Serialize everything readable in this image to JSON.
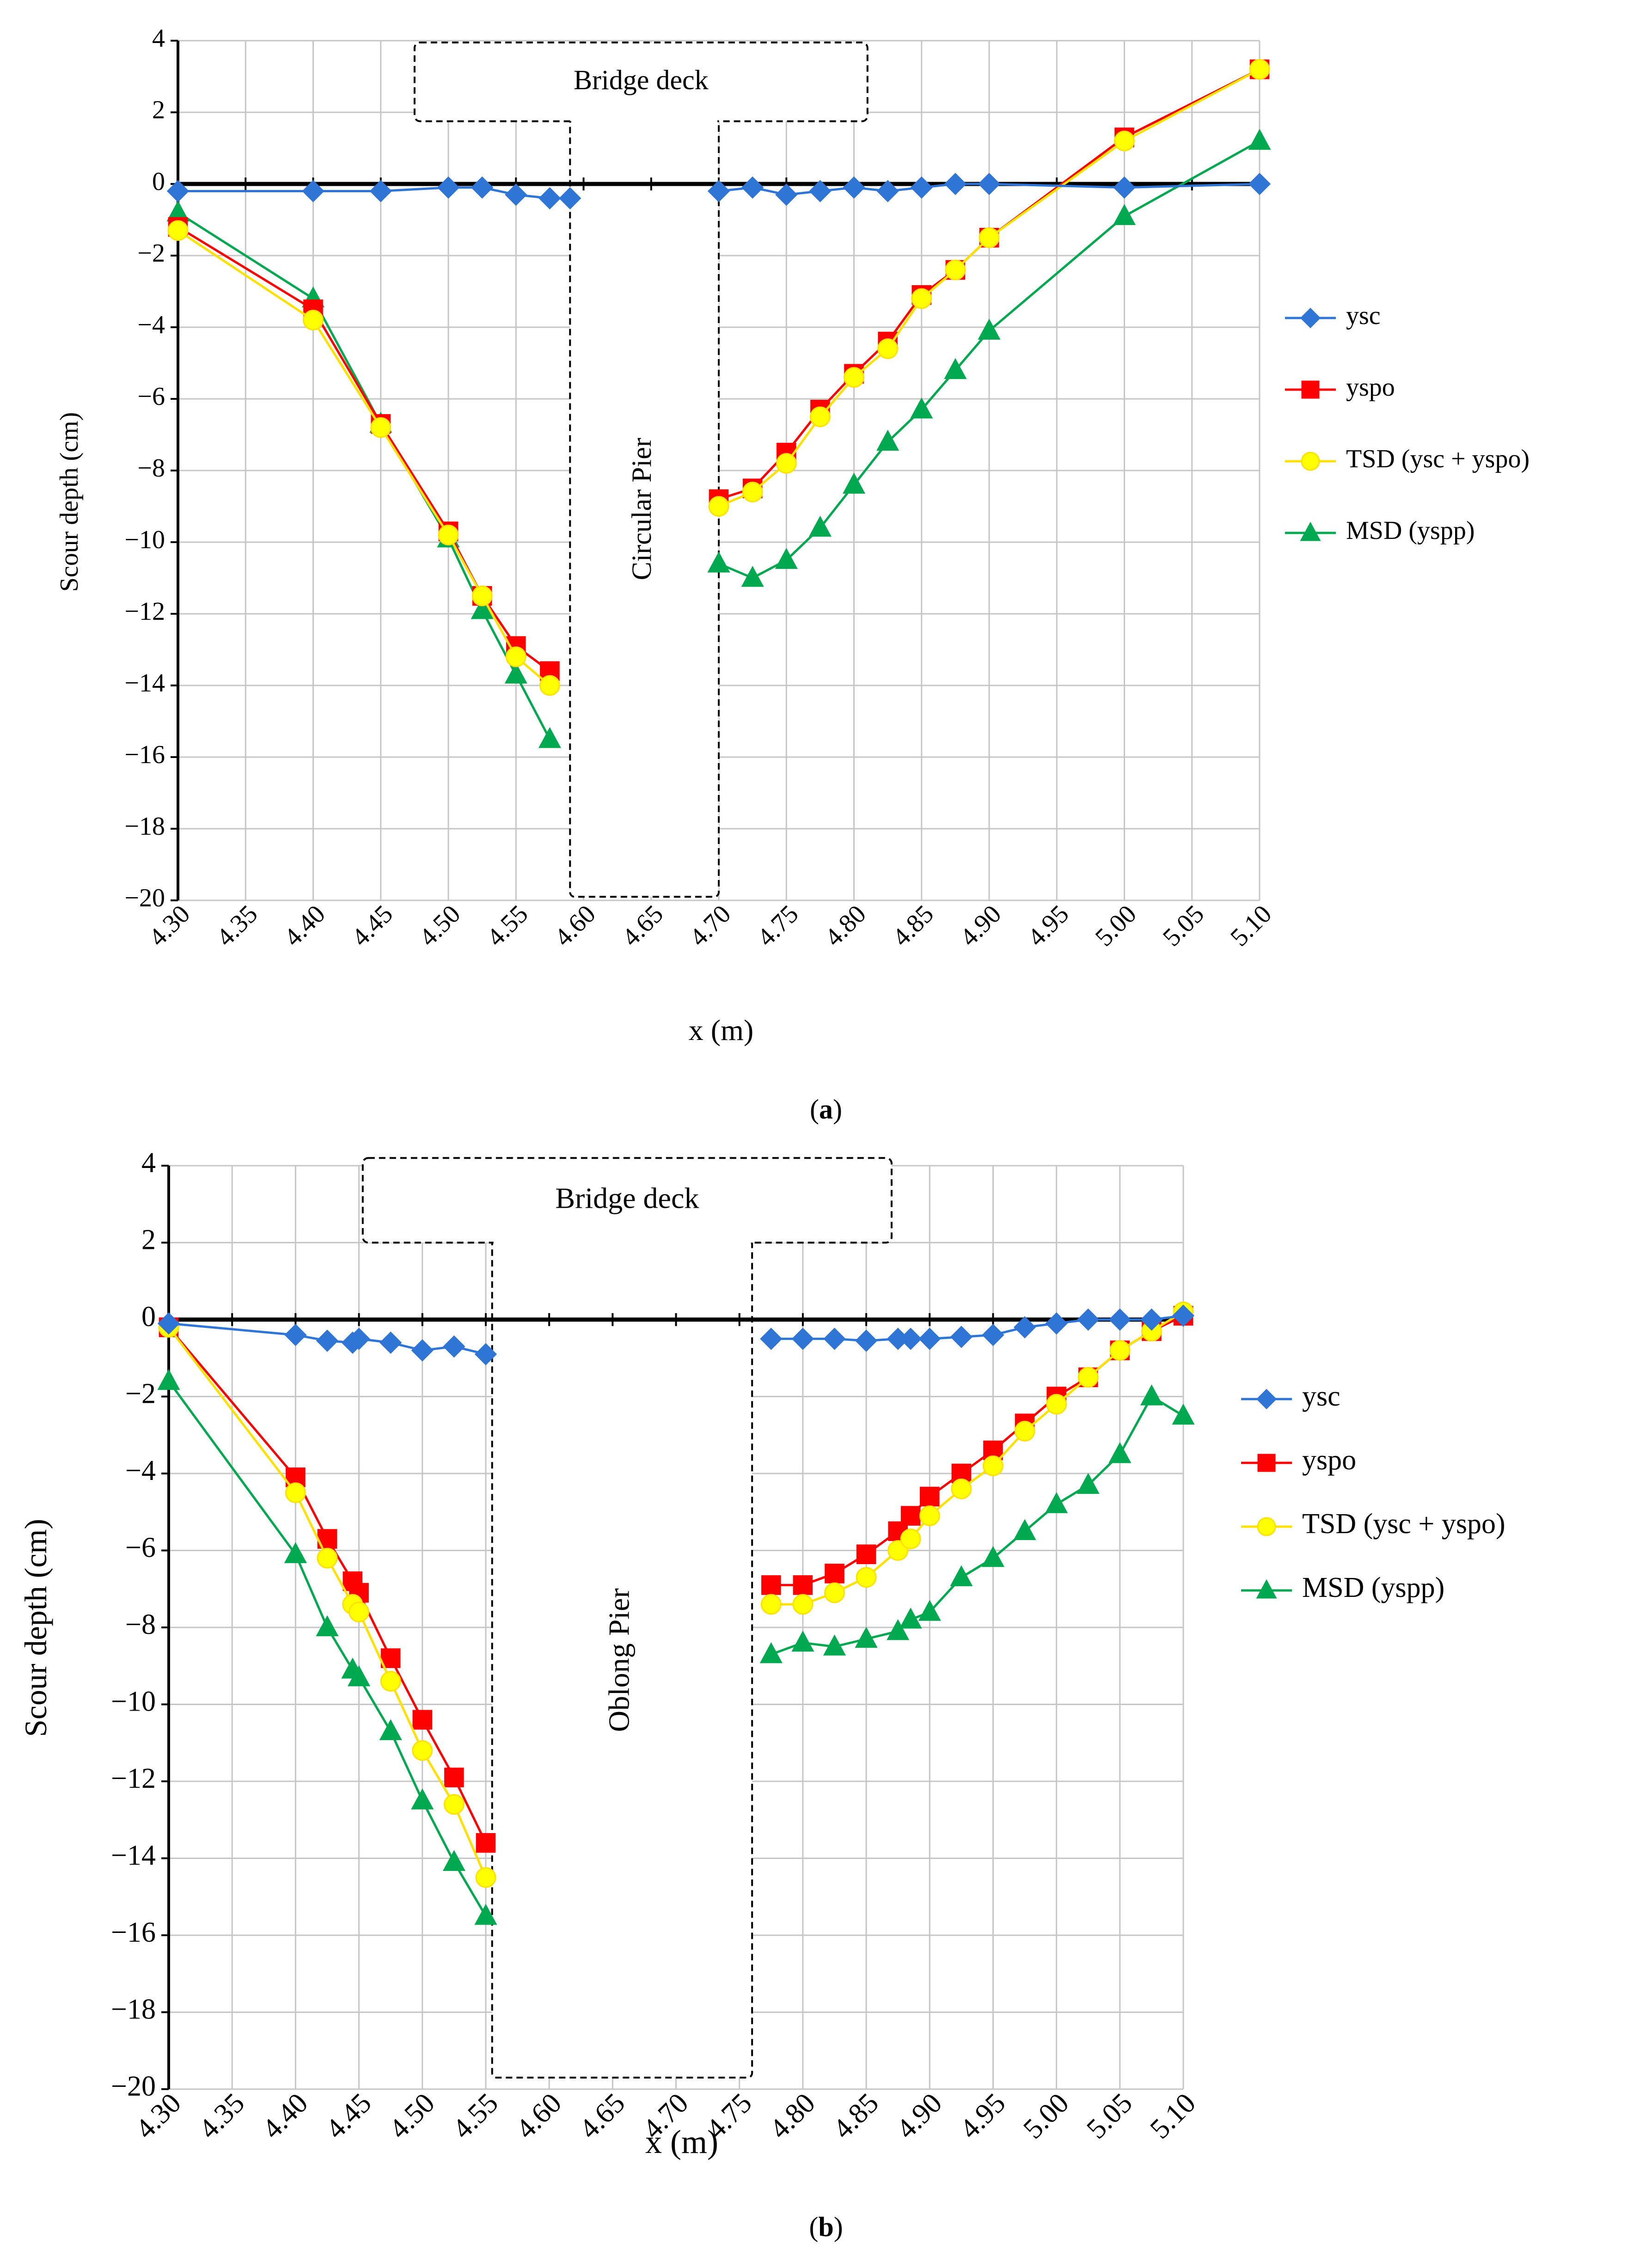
{
  "colors": {
    "ysc": "#2E75D6",
    "yspo": "#FF0000",
    "tsd_line": "#FFE100",
    "tsd_marker": "#FFFF00",
    "msd": "#00A94F",
    "grid": "#C6C6C6"
  },
  "chart_data": [
    {
      "panel": "(a)",
      "panel_letter": "a",
      "type": "line",
      "xlabel": "x (m)",
      "ylabel": "Scour depth (cm)",
      "xlim": [
        4.3,
        5.1
      ],
      "ylim": [
        -20,
        4
      ],
      "xticks": [
        "4.30",
        "4.35",
        "4.40",
        "4.45",
        "4.50",
        "4.55",
        "4.60",
        "4.65",
        "4.70",
        "4.75",
        "4.80",
        "4.85",
        "4.90",
        "4.95",
        "5.00",
        "5.05",
        "5.10"
      ],
      "yticks": [
        "4",
        "2",
        "0",
        "-2",
        "-4",
        "-6",
        "-8",
        "-10",
        "-12",
        "-14",
        "-16",
        "-18",
        "-20"
      ],
      "deck_label": "Bridge deck",
      "pier_label": "Circular Pier",
      "deck_extent_x": [
        4.475,
        4.81
      ],
      "deck_bottom_y": 1.75,
      "pier_extent_x": [
        4.59,
        4.7
      ],
      "pier_bottom_y": -19.9,
      "series": [
        {
          "key": "ysc",
          "name": "ysc",
          "marker": "diamond",
          "left": [
            [
              4.3,
              -0.2
            ],
            [
              4.4,
              -0.2
            ],
            [
              4.45,
              -0.2
            ],
            [
              4.5,
              -0.1
            ],
            [
              4.525,
              -0.1
            ],
            [
              4.55,
              -0.3
            ],
            [
              4.575,
              -0.4
            ],
            [
              4.59,
              -0.4
            ]
          ],
          "right": [
            [
              4.7,
              -0.2
            ],
            [
              4.725,
              -0.1
            ],
            [
              4.75,
              -0.3
            ],
            [
              4.775,
              -0.2
            ],
            [
              4.8,
              -0.1
            ],
            [
              4.825,
              -0.2
            ],
            [
              4.85,
              -0.1
            ],
            [
              4.875,
              0.0
            ],
            [
              4.9,
              0.0
            ],
            [
              5.0,
              -0.1
            ],
            [
              5.1,
              0.0
            ]
          ]
        },
        {
          "key": "yspo",
          "name": "yspo",
          "marker": "square",
          "left": [
            [
              4.3,
              -1.2
            ],
            [
              4.4,
              -3.5
            ],
            [
              4.45,
              -6.7
            ],
            [
              4.5,
              -9.7
            ],
            [
              4.525,
              -11.5
            ],
            [
              4.55,
              -12.9
            ],
            [
              4.575,
              -13.6
            ]
          ],
          "right": [
            [
              4.7,
              -8.8
            ],
            [
              4.725,
              -8.5
            ],
            [
              4.75,
              -7.5
            ],
            [
              4.775,
              -6.3
            ],
            [
              4.8,
              -5.3
            ],
            [
              4.825,
              -4.4
            ],
            [
              4.85,
              -3.1
            ],
            [
              4.875,
              -2.4
            ],
            [
              4.9,
              -1.5
            ],
            [
              5.0,
              1.3
            ],
            [
              5.1,
              3.2
            ]
          ]
        },
        {
          "key": "tsd",
          "name": "TSD (ysc + yspo)",
          "marker": "circle",
          "left": [
            [
              4.3,
              -1.3
            ],
            [
              4.4,
              -3.8
            ],
            [
              4.45,
              -6.8
            ],
            [
              4.5,
              -9.8
            ],
            [
              4.525,
              -11.5
            ],
            [
              4.55,
              -13.2
            ],
            [
              4.575,
              -14.0
            ]
          ],
          "right": [
            [
              4.7,
              -9.0
            ],
            [
              4.725,
              -8.6
            ],
            [
              4.75,
              -7.8
            ],
            [
              4.775,
              -6.5
            ],
            [
              4.8,
              -5.4
            ],
            [
              4.825,
              -4.6
            ],
            [
              4.85,
              -3.2
            ],
            [
              4.875,
              -2.4
            ],
            [
              4.9,
              -1.5
            ],
            [
              5.0,
              1.2
            ],
            [
              5.1,
              3.2
            ]
          ]
        },
        {
          "key": "msd",
          "name": "MSD (yspp)",
          "marker": "triangle",
          "left": [
            [
              4.3,
              -0.8
            ],
            [
              4.4,
              -3.2
            ],
            [
              4.45,
              -6.7
            ],
            [
              4.5,
              -9.9
            ],
            [
              4.525,
              -11.9
            ],
            [
              4.55,
              -13.7
            ],
            [
              4.575,
              -15.5
            ]
          ],
          "right": [
            [
              4.7,
              -10.6
            ],
            [
              4.725,
              -11.0
            ],
            [
              4.75,
              -10.5
            ],
            [
              4.775,
              -9.6
            ],
            [
              4.8,
              -8.4
            ],
            [
              4.825,
              -7.2
            ],
            [
              4.85,
              -6.3
            ],
            [
              4.875,
              -5.2
            ],
            [
              4.9,
              -4.1
            ],
            [
              5.0,
              -0.9
            ],
            [
              5.1,
              1.2
            ]
          ]
        }
      ]
    },
    {
      "panel": "(b)",
      "panel_letter": "b",
      "type": "line",
      "xlabel": "x (m)",
      "ylabel": "Scour depth (cm)",
      "xlim": [
        4.3,
        5.1
      ],
      "ylim": [
        -20,
        4
      ],
      "xticks": [
        "4.30",
        "4.35",
        "4.40",
        "4.45",
        "4.50",
        "4.55",
        "4.60",
        "4.65",
        "4.70",
        "4.75",
        "4.80",
        "4.85",
        "4.90",
        "4.95",
        "5.00",
        "5.05",
        "5.10"
      ],
      "yticks": [
        "4",
        "2",
        "0",
        "-2",
        "-4",
        "-6",
        "-8",
        "-10",
        "-12",
        "-14",
        "-16",
        "-18",
        "-20"
      ],
      "deck_label": "Bridge deck",
      "pier_label": "Oblong Pier",
      "deck_extent_x": [
        4.453,
        4.87
      ],
      "deck_bottom_y": 2.0,
      "pier_extent_x": [
        4.555,
        4.76
      ],
      "pier_bottom_y": -19.7,
      "series": [
        {
          "key": "ysc",
          "name": "ysc",
          "marker": "diamond",
          "left": [
            [
              4.3,
              -0.1
            ],
            [
              4.4,
              -0.4
            ],
            [
              4.425,
              -0.55
            ],
            [
              4.445,
              -0.6
            ],
            [
              4.45,
              -0.5
            ],
            [
              4.475,
              -0.6
            ],
            [
              4.5,
              -0.8
            ],
            [
              4.525,
              -0.7
            ],
            [
              4.55,
              -0.9
            ]
          ],
          "right": [
            [
              4.775,
              -0.5
            ],
            [
              4.8,
              -0.5
            ],
            [
              4.825,
              -0.5
            ],
            [
              4.85,
              -0.55
            ],
            [
              4.875,
              -0.5
            ],
            [
              4.885,
              -0.5
            ],
            [
              4.9,
              -0.5
            ],
            [
              4.925,
              -0.45
            ],
            [
              4.95,
              -0.4
            ],
            [
              4.975,
              -0.2
            ],
            [
              5.0,
              -0.1
            ],
            [
              5.025,
              0.0
            ],
            [
              5.05,
              0.0
            ],
            [
              5.075,
              0.0
            ],
            [
              5.1,
              0.1
            ]
          ]
        },
        {
          "key": "yspo",
          "name": "yspo",
          "marker": "square",
          "left": [
            [
              4.3,
              -0.2
            ],
            [
              4.4,
              -4.1
            ],
            [
              4.425,
              -5.7
            ],
            [
              4.445,
              -6.8
            ],
            [
              4.45,
              -7.1
            ],
            [
              4.475,
              -8.8
            ],
            [
              4.5,
              -10.4
            ],
            [
              4.525,
              -11.9
            ],
            [
              4.55,
              -13.6
            ]
          ],
          "right": [
            [
              4.775,
              -6.9
            ],
            [
              4.8,
              -6.9
            ],
            [
              4.825,
              -6.6
            ],
            [
              4.85,
              -6.1
            ],
            [
              4.875,
              -5.5
            ],
            [
              4.885,
              -5.1
            ],
            [
              4.9,
              -4.6
            ],
            [
              4.925,
              -4.0
            ],
            [
              4.95,
              -3.4
            ],
            [
              4.975,
              -2.7
            ],
            [
              5.0,
              -2.0
            ],
            [
              5.025,
              -1.5
            ],
            [
              5.05,
              -0.8
            ],
            [
              5.075,
              -0.3
            ],
            [
              5.1,
              0.1
            ]
          ]
        },
        {
          "key": "tsd",
          "name": "TSD (ysc + yspo)",
          "marker": "circle",
          "left": [
            [
              4.3,
              -0.2
            ],
            [
              4.4,
              -4.5
            ],
            [
              4.425,
              -6.2
            ],
            [
              4.445,
              -7.4
            ],
            [
              4.45,
              -7.6
            ],
            [
              4.475,
              -9.4
            ],
            [
              4.5,
              -11.2
            ],
            [
              4.525,
              -12.6
            ],
            [
              4.55,
              -14.5
            ]
          ],
          "right": [
            [
              4.775,
              -7.4
            ],
            [
              4.8,
              -7.4
            ],
            [
              4.825,
              -7.1
            ],
            [
              4.85,
              -6.7
            ],
            [
              4.875,
              -6.0
            ],
            [
              4.885,
              -5.7
            ],
            [
              4.9,
              -5.1
            ],
            [
              4.925,
              -4.4
            ],
            [
              4.95,
              -3.8
            ],
            [
              4.975,
              -2.9
            ],
            [
              5.0,
              -2.2
            ],
            [
              5.025,
              -1.5
            ],
            [
              5.05,
              -0.8
            ],
            [
              5.075,
              -0.3
            ],
            [
              5.1,
              0.2
            ]
          ]
        },
        {
          "key": "msd",
          "name": "MSD (yspp)",
          "marker": "triangle",
          "left": [
            [
              4.3,
              -1.6
            ],
            [
              4.4,
              -6.1
            ],
            [
              4.425,
              -8.0
            ],
            [
              4.445,
              -9.1
            ],
            [
              4.45,
              -9.3
            ],
            [
              4.475,
              -10.7
            ],
            [
              4.5,
              -12.5
            ],
            [
              4.525,
              -14.1
            ],
            [
              4.55,
              -15.5
            ]
          ],
          "right": [
            [
              4.775,
              -8.7
            ],
            [
              4.8,
              -8.4
            ],
            [
              4.825,
              -8.5
            ],
            [
              4.85,
              -8.3
            ],
            [
              4.875,
              -8.1
            ],
            [
              4.885,
              -7.8
            ],
            [
              4.9,
              -7.6
            ],
            [
              4.925,
              -6.7
            ],
            [
              4.95,
              -6.2
            ],
            [
              4.975,
              -5.5
            ],
            [
              5.0,
              -4.8
            ],
            [
              5.025,
              -4.3
            ],
            [
              5.05,
              -3.5
            ],
            [
              5.075,
              -2.0
            ],
            [
              5.1,
              -2.5
            ]
          ]
        }
      ]
    }
  ]
}
